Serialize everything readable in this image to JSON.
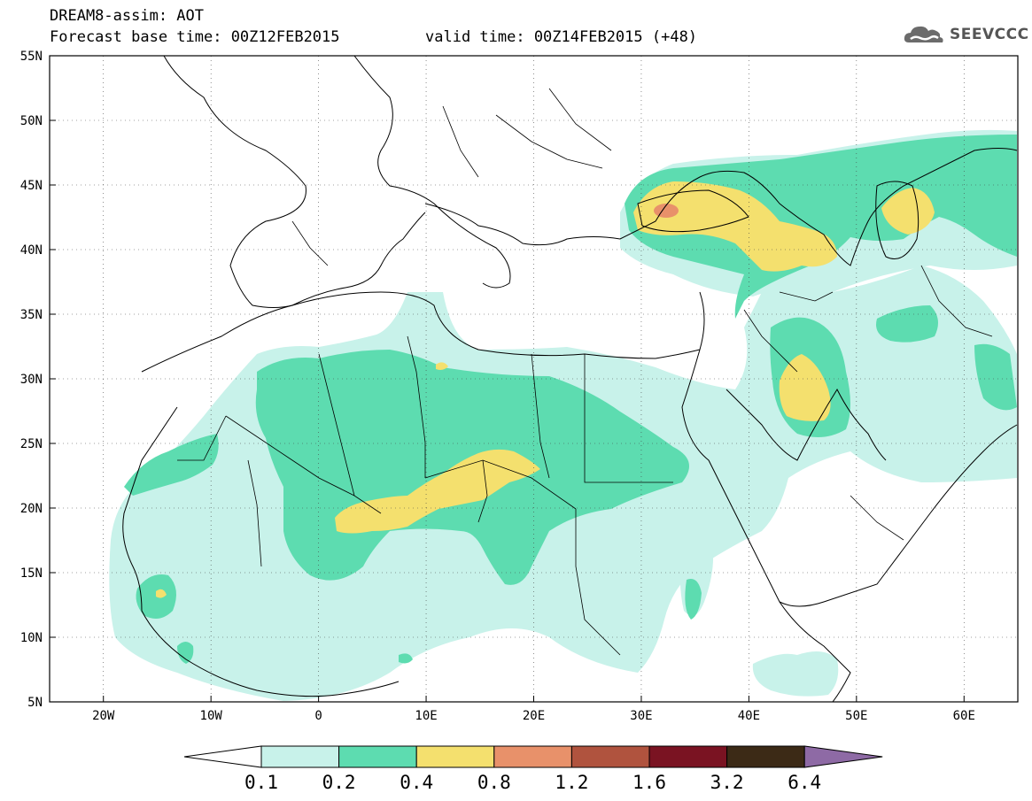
{
  "header": {
    "line1": "DREAM8-assim: AOT",
    "line2": "Forecast base time: 00Z12FEB2015",
    "line3": "valid time: 00Z14FEB2015 (+48)"
  },
  "logo": {
    "text": "SEEVCCC",
    "icon": "cloud-logo-icon"
  },
  "map": {
    "projection": "lat-lon",
    "extent": {
      "lon": [
        -25,
        65
      ],
      "lat": [
        5,
        55
      ]
    },
    "lat_labels": [
      "55N",
      "50N",
      "45N",
      "40N",
      "35N",
      "30N",
      "25N",
      "20N",
      "15N",
      "10N",
      "5N"
    ],
    "lon_labels": [
      "20W",
      "10W",
      "0",
      "10E",
      "20E",
      "30E",
      "40E",
      "50E",
      "60E"
    ],
    "lat_values": [
      55,
      50,
      45,
      40,
      35,
      30,
      25,
      20,
      15,
      10,
      5
    ],
    "lon_values": [
      -20,
      -10,
      0,
      10,
      20,
      30,
      40,
      50,
      60
    ],
    "grid": "dotted"
  },
  "colorbar": {
    "levels": [
      "0.1",
      "0.2",
      "0.4",
      "0.8",
      "1.2",
      "1.6",
      "3.2",
      "6.4"
    ],
    "colors": [
      "#c8f2ea",
      "#5ddcb0",
      "#f4e06e",
      "#e8916a",
      "#b0533e",
      "#7a1322",
      "#3c2a16"
    ],
    "over_color": "#8e6aa5",
    "under_color": "#ffffff"
  },
  "fields": {
    "c1": "#c8f2ea",
    "c2": "#5ddcb0",
    "c3": "#f4e06e",
    "c4": "#e8916a"
  }
}
